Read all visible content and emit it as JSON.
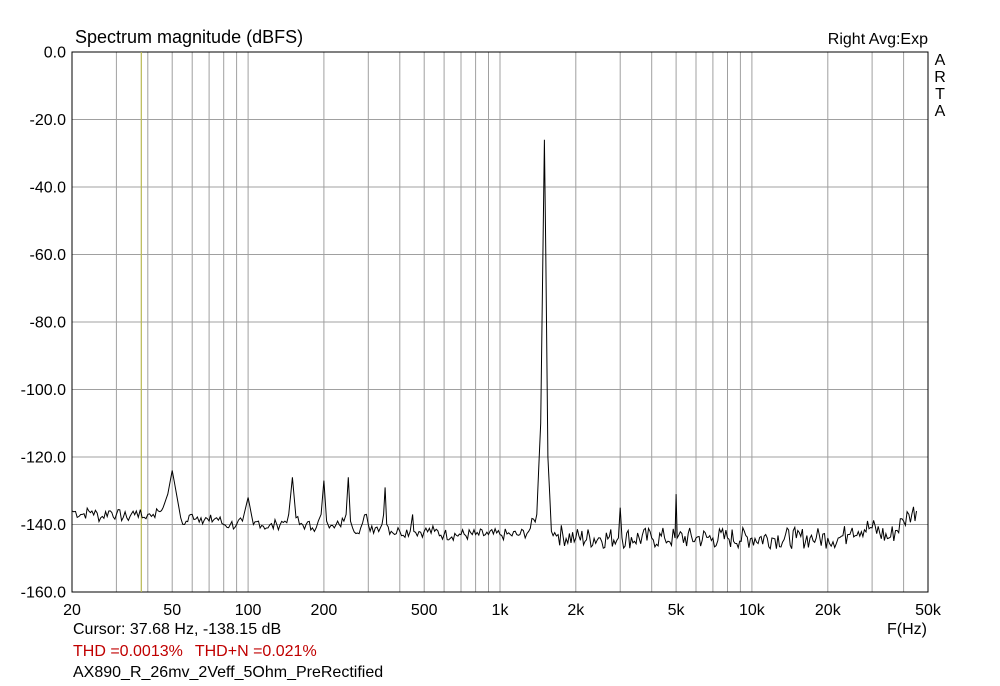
{
  "chart_data": {
    "type": "line",
    "title": "Spectrum magnitude (dBFS)",
    "xlabel": "F(Hz)",
    "ylabel": "",
    "x_scale": "log",
    "xlim": [
      20,
      50000
    ],
    "ylim": [
      -160,
      0
    ],
    "grid": true,
    "x_tick_labels": [
      {
        "value": 20,
        "label": "20"
      },
      {
        "value": 50,
        "label": "50"
      },
      {
        "value": 100,
        "label": "100"
      },
      {
        "value": 200,
        "label": "200"
      },
      {
        "value": 500,
        "label": "500"
      },
      {
        "value": 1000,
        "label": "1k"
      },
      {
        "value": 2000,
        "label": "2k"
      },
      {
        "value": 5000,
        "label": "5k"
      },
      {
        "value": 10000,
        "label": "10k"
      },
      {
        "value": 20000,
        "label": "20k"
      },
      {
        "value": 50000,
        "label": "50k"
      }
    ],
    "y_ticks": [
      0,
      -20,
      -40,
      -60,
      -80,
      -100,
      -120,
      -140,
      -160
    ],
    "y_tick_labels": [
      "0.0",
      "-20.0",
      "-40.0",
      "-60.0",
      "-80.0",
      "-100.0",
      "-120.0",
      "-140.0",
      "-160.0"
    ],
    "cursor_x": 37.68,
    "series": [
      {
        "color": "#000000",
        "x": [
          20,
          22,
          24,
          26,
          28,
          30,
          33,
          36,
          38,
          40,
          42,
          44,
          46,
          48,
          50,
          52,
          54,
          56,
          60,
          65,
          70,
          75,
          80,
          85,
          90,
          95,
          100,
          105,
          110,
          120,
          130,
          140,
          145,
          150,
          155,
          160,
          170,
          180,
          190,
          195,
          200,
          205,
          210,
          220,
          230,
          240,
          245,
          250,
          255,
          260,
          280,
          295,
          300,
          305,
          320,
          340,
          345,
          350,
          355,
          370,
          400,
          440,
          450,
          455,
          500,
          550,
          600,
          700,
          800,
          900,
          1000,
          1100,
          1200,
          1300,
          1400,
          1450,
          1480,
          1500,
          1520,
          1550,
          1600,
          1700,
          2000,
          2500,
          2950,
          3000,
          3050,
          4000,
          4500,
          4950,
          5000,
          5050,
          6000,
          7000,
          8000,
          10000,
          12000,
          15000,
          17000,
          18000,
          20000,
          22000,
          24000,
          25000,
          30000,
          35000,
          40000,
          42000,
          45000
        ],
        "y": [
          -136,
          -137,
          -136,
          -138,
          -136,
          -137,
          -138,
          -136,
          -138,
          -137,
          -137,
          -136,
          -135,
          -131,
          -124,
          -131,
          -138,
          -140,
          -137,
          -138,
          -139,
          -138,
          -140,
          -140,
          -140,
          -139,
          -132,
          -140,
          -139,
          -141,
          -140,
          -139,
          -137,
          -126,
          -138,
          -140,
          -140,
          -141,
          -139,
          -137,
          -127,
          -139,
          -141,
          -141,
          -140,
          -139,
          -137,
          -126,
          -139,
          -141,
          -141,
          -137,
          -140,
          -142,
          -141,
          -140,
          -137,
          -129,
          -140,
          -142,
          -142,
          -142,
          -137,
          -142,
          -142,
          -142,
          -143,
          -143,
          -143,
          -143,
          -143,
          -143,
          -143,
          -142,
          -137,
          -110,
          -60,
          -26,
          -60,
          -120,
          -142,
          -143,
          -144,
          -144,
          -144,
          -135,
          -144,
          -144,
          -144,
          -144,
          -131,
          -144,
          -144,
          -144,
          -144,
          -144,
          -144,
          -144,
          -144,
          -144,
          -144,
          -144,
          -143,
          -141,
          -141,
          -144,
          -139,
          -137,
          -136
        ]
      }
    ]
  },
  "header": {
    "title": "Spectrum magnitude (dBFS)",
    "avg_mode": "Right Avg:Exp",
    "brand_letters": [
      "A",
      "R",
      "T",
      "A"
    ]
  },
  "footer": {
    "cursor": "Cursor: 37.68 Hz, -138.15 dB",
    "thd": "THD =0.0013%",
    "thdn": "THD+N =0.021%",
    "filename": "AX890_R_26mv_2Veff_5Ohm_PreRectified",
    "x_unit": "F(Hz)"
  },
  "colors": {
    "grid": "#a0a0a0",
    "axes": "#000000",
    "trace": "#000000",
    "cursor": "#b8b850",
    "thd_text": "#c00000"
  }
}
